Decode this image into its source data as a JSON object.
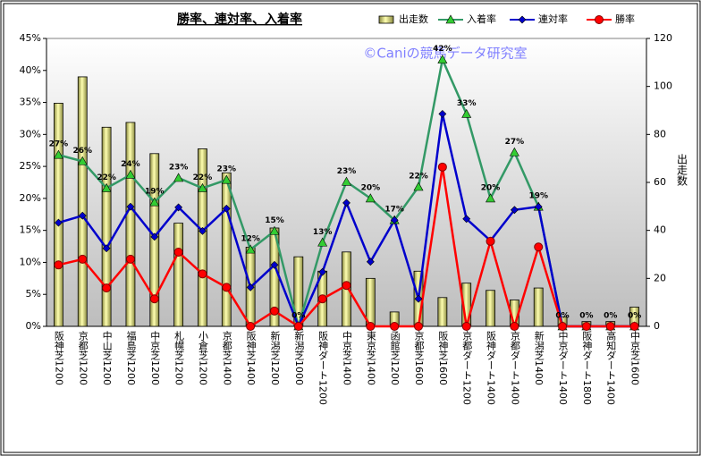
{
  "chart_data": {
    "type": "bar",
    "title": "勝率、連対率、入着率",
    "watermark": "©Caniの競馬データ研究室",
    "y2_label": "出走数",
    "categories": [
      "阪神芝1200",
      "京都芝1200",
      "中山芝1200",
      "福島芝1200",
      "中京芝1200",
      "札幌芝1200",
      "小倉芝1200",
      "京都芝1400",
      "阪神芝1400",
      "新潟芝1200",
      "新潟芝1000",
      "阪神ダート1200",
      "中京芝1400",
      "東京芝1400",
      "函館芝1200",
      "京都芝1600",
      "阪神芝1600",
      "京都ダート1200",
      "阪神ダート1400",
      "京都ダート1400",
      "新潟芝1400",
      "中京ダート1400",
      "阪神ダート1800",
      "高知ダート1400",
      "中京芝1600"
    ],
    "ylim": [
      0,
      45
    ],
    "yticks": [
      {
        "value": 0,
        "label": "0%"
      },
      {
        "value": 5,
        "label": "5%"
      },
      {
        "value": 10,
        "label": "10%"
      },
      {
        "value": 15,
        "label": "15%"
      },
      {
        "value": 20,
        "label": "20%"
      },
      {
        "value": 25,
        "label": "25%"
      },
      {
        "value": 30,
        "label": "30%"
      },
      {
        "value": 35,
        "label": "35%"
      },
      {
        "value": 40,
        "label": "40%"
      },
      {
        "value": 45,
        "label": "45%"
      }
    ],
    "y2lim": [
      0,
      120
    ],
    "y2ticks": [
      0,
      20,
      40,
      60,
      80,
      100,
      120
    ],
    "legend": "top",
    "series": [
      {
        "name": "出走数",
        "type": "bar",
        "axis": "y2",
        "color": "#ffff99",
        "values": [
          93,
          104,
          83,
          85,
          72,
          43,
          74,
          64,
          33,
          41,
          29,
          23,
          31,
          20,
          6,
          23,
          12,
          18,
          15,
          11,
          16,
          4,
          2,
          2,
          8
        ]
      },
      {
        "name": "入着率",
        "type": "line",
        "marker": "triangle",
        "color": "#339966",
        "marker_color": "#33cc33",
        "values": [
          26.8,
          25.8,
          21.6,
          23.7,
          19.4,
          23.2,
          21.6,
          22.9,
          12.0,
          14.9,
          0,
          13.1,
          22.6,
          20.0,
          16.6,
          21.8,
          41.7,
          33.2,
          20.0,
          27.2,
          18.7,
          0,
          0,
          0,
          0
        ],
        "value_labels": [
          "27%",
          "26%",
          "22%",
          "24%",
          "19%",
          "23%",
          "22%",
          "23%",
          "12%",
          "15%",
          "0%",
          "13%",
          "23%",
          "20%",
          "17%",
          "22%",
          "42%",
          "33%",
          "20%",
          "27%",
          "19%",
          "0%",
          "0%",
          "0%",
          "0%"
        ]
      },
      {
        "name": "連対率",
        "type": "line",
        "marker": "diamond",
        "color": "#0000cc",
        "marker_color": "#0000cc",
        "values": [
          16.2,
          17.3,
          12.2,
          18.7,
          14.0,
          18.6,
          14.9,
          18.4,
          6.1,
          9.6,
          0,
          8.5,
          19.3,
          10.1,
          16.6,
          4.3,
          33.2,
          16.8,
          13.4,
          18.2,
          18.7,
          0,
          0,
          0,
          0
        ]
      },
      {
        "name": "勝率",
        "type": "line",
        "marker": "circle",
        "color": "#ff0000",
        "marker_color": "#ff0000",
        "values": [
          9.6,
          10.5,
          6.0,
          10.5,
          4.3,
          11.6,
          8.2,
          6.1,
          0,
          2.4,
          0,
          4.3,
          6.4,
          0,
          0,
          0,
          24.9,
          0,
          13.3,
          0,
          12.4,
          0,
          0,
          0,
          0
        ]
      }
    ]
  }
}
